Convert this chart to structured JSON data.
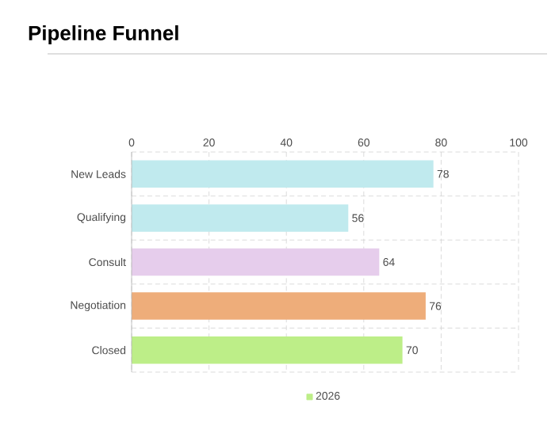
{
  "chart_data": {
    "type": "bar",
    "orientation": "horizontal",
    "title": "Pipeline Funnel",
    "categories": [
      "New Leads",
      "Qualifying",
      "Consult",
      "Negotiation",
      "Closed"
    ],
    "series": [
      {
        "name": "2026",
        "color": "#bdee88",
        "colors": [
          "#c0eaee",
          "#c0eaee",
          "#e6cdec",
          "#eead7a",
          "#bdee88"
        ],
        "values": [
          78,
          56,
          64,
          76,
          70
        ]
      }
    ],
    "xlim": [
      0,
      100
    ],
    "xticks": [
      0,
      20,
      40,
      60,
      80,
      100
    ],
    "grid": true,
    "legend": "bottom",
    "data_labels": true
  }
}
